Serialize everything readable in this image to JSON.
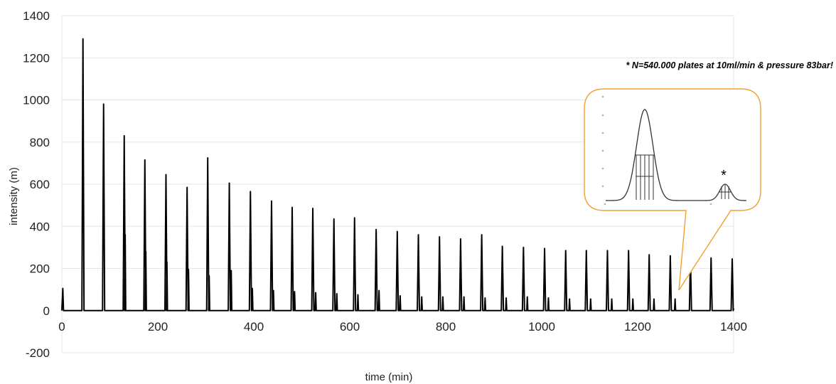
{
  "chart_data": {
    "type": "line",
    "xlabel": "time (min)",
    "ylabel": "intensity (m)",
    "xlim": [
      0,
      1400
    ],
    "ylim": [
      -200,
      1400
    ],
    "x_ticks": [
      "0",
      "200",
      "400",
      "600",
      "800",
      "1000",
      "1200",
      "1400"
    ],
    "y_ticks": [
      "-200",
      "0",
      "200",
      "400",
      "600",
      "800",
      "1000",
      "1200",
      "1400"
    ],
    "grid": "horizontal",
    "legend": "none",
    "annotation": "* N=540.000 plates at 10ml/min & pressure 83bar!",
    "inset_marker": "*",
    "series": [
      {
        "color": "#000000",
        "baseline": 0,
        "start_spike": {
          "x": 2,
          "y": 105
        },
        "peaks_x": [
          44,
          87,
          130,
          173,
          217,
          261,
          304,
          349,
          393,
          437,
          480,
          523,
          567,
          610,
          655,
          699,
          743,
          787,
          831,
          875,
          918,
          962,
          1006,
          1050,
          1093,
          1137,
          1181,
          1224,
          1268,
          1310,
          1353,
          1397
        ],
        "peaks_y": [
          1290,
          980,
          830,
          715,
          645,
          585,
          725,
          605,
          565,
          520,
          490,
          485,
          435,
          440,
          385,
          375,
          360,
          350,
          340,
          360,
          305,
          300,
          295,
          285,
          285,
          285,
          285,
          265,
          260,
          250,
          250,
          245
        ],
        "secondary_x": [
          132,
          175,
          219,
          264,
          307,
          353,
          397,
          441,
          485,
          529,
          573,
          617,
          661,
          705,
          750,
          794,
          838,
          882,
          926,
          970,
          1014,
          1058,
          1102,
          1146,
          1190,
          1234,
          1278
        ],
        "secondary_y": [
          360,
          280,
          230,
          195,
          165,
          190,
          105,
          95,
          90,
          85,
          80,
          75,
          95,
          70,
          65,
          65,
          65,
          60,
          60,
          65,
          60,
          55,
          55,
          55,
          55,
          55,
          55
        ]
      }
    ]
  },
  "inset": {
    "border_color": "#f0a030"
  }
}
